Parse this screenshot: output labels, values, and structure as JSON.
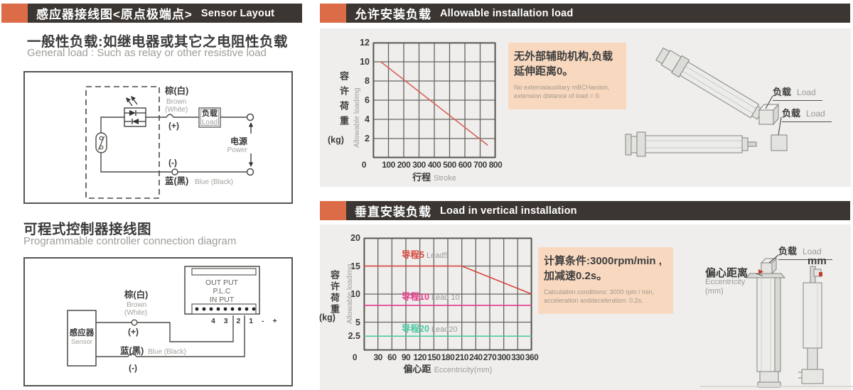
{
  "page": {
    "accent_orange": "#dc6c47",
    "bar_dark": "#3b3632",
    "panel_gray": "#efeeec",
    "note_peach": "#f8d9c0",
    "text_dark": "#3b3b3b",
    "text_gray": "#9d9d97"
  },
  "left": {
    "header": {
      "zh": "感应器接线图<原点极端点>",
      "en": "Sensor Layout"
    },
    "general_load": {
      "title_zh": "一般性负载:如继电器或其它之电阻性负载",
      "title_en": "General load : Such as relay or other resistive load",
      "circuit": {
        "brown_zh": "棕(白)",
        "brown_en1": "Brown",
        "brown_en2": "(White)",
        "plus": "(+)",
        "minus": "(-)",
        "load_zh": "负载",
        "load_en": "Load",
        "power_zh": "电源",
        "power_en": "Power",
        "blue_zh": "蓝(黑)",
        "blue_en": "Blue (Black)"
      }
    },
    "plc": {
      "title_zh": "可程式控制器接线图",
      "title_en": "Programmable controller connection diagram",
      "circuit": {
        "sensor_zh": "感应器",
        "sensor_en": "Sensor",
        "plc_line1": "OUT PUT",
        "plc_line2": "P.L.C",
        "plc_line3": "IN PUT",
        "terminals": "4 3 2 1 - +",
        "brown_zh": "棕(白)",
        "brown_en1": "Brown",
        "brown_en2": "(White)",
        "plus": "(+)",
        "minus": "(-)",
        "blue_zh": "蓝(黑)",
        "blue_en": "Blue (Black)"
      }
    }
  },
  "right_top": {
    "header": {
      "zh": "允许安装负载",
      "en": "Allowable installation load"
    },
    "note": {
      "zh_line1": "无外部辅助机构,负载",
      "zh_line2": "延伸距离0。",
      "en_line1": "No externalauxiliary mBCHanism,",
      "en_line2": "extension distance of load = 0."
    },
    "load_label_1": {
      "zh": "负载",
      "en": "Load"
    },
    "load_label_2": {
      "zh": "负载",
      "en": "Load"
    }
  },
  "right_bottom": {
    "header": {
      "zh": "垂直安装负载",
      "en": "Load in vertical installation"
    },
    "note": {
      "zh_line1": "计算条件:3000rpm/min ,",
      "zh_line2": "加减速0.2s。",
      "en_line1": "Calculation conditions: 3000 rpm / min,",
      "en_line2": "acceleration anddeceleration: 0.2s."
    },
    "load_label": {
      "zh": "负载",
      "en": "Load"
    },
    "mm_label": "mm",
    "eccentricity": {
      "zh": "偏心距离",
      "en": "Eccentricity",
      "unit": "(mm)"
    }
  },
  "chart_data": [
    {
      "type": "line",
      "title": "允许安装负载 Allowable installation load",
      "xlabel_zh": "行程",
      "xlabel_en": "Stroke",
      "ylabel_zh": "容许荷重",
      "ylabel_unit": "(kg)",
      "ylabel_en": "Allowable loadimg",
      "xlim": [
        0,
        800
      ],
      "ylim": [
        0,
        12
      ],
      "xticks": [
        0,
        100,
        200,
        300,
        400,
        500,
        600,
        700,
        800
      ],
      "yticks": [
        0,
        2,
        4,
        6,
        8,
        10,
        12
      ],
      "grid": true,
      "legend_position": "none",
      "series": [
        {
          "name": "allowable-load",
          "color": "#d96057",
          "points": [
            [
              50,
              10
            ],
            [
              750,
              1.3
            ]
          ]
        }
      ]
    },
    {
      "type": "line",
      "title": "垂直安装负载 Load in vertical installation",
      "xlabel_zh": "偏心距",
      "xlabel_en": "Eccentricity(mm)",
      "ylabel_zh": "容许荷重",
      "ylabel_unit": "(kg)",
      "ylabel_en": "Allowable loadimg",
      "xlim": [
        0,
        360
      ],
      "ylim": [
        0,
        20
      ],
      "xticks": [
        0,
        30,
        60,
        90,
        120,
        150,
        180,
        210,
        240,
        270,
        300,
        330,
        360
      ],
      "yticks": [
        0,
        2.5,
        5,
        10,
        15,
        20
      ],
      "grid": true,
      "legend_position": "inline-annotations",
      "series": [
        {
          "name_zh": "导程5",
          "name_en": "Lead5",
          "color": "#d9453b",
          "points": [
            [
              0,
              15
            ],
            [
              210,
              15
            ],
            [
              360,
              10
            ]
          ]
        },
        {
          "name_zh": "导程10",
          "name_en": "Lead 10",
          "color": "#e8388c",
          "points": [
            [
              0,
              8
            ],
            [
              360,
              8
            ]
          ]
        },
        {
          "name_zh": "导程20",
          "name_en": "Lead20",
          "color": "#46c8a2",
          "points": [
            [
              0,
              2.5
            ],
            [
              360,
              2.5
            ]
          ]
        }
      ]
    }
  ]
}
